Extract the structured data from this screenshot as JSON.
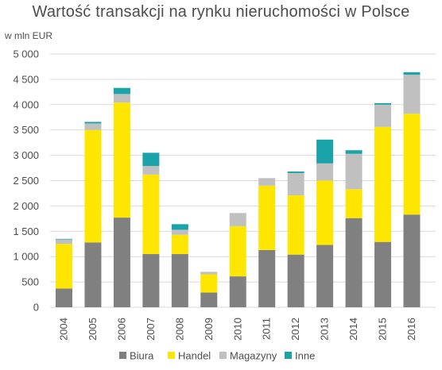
{
  "chart_data": {
    "type": "bar",
    "stacked": true,
    "title": "Wartość transakcji na rynku nieruchomości w Polsce",
    "ylabel": "w mln EUR",
    "xlabel": "",
    "ylim": [
      0,
      5000
    ],
    "yticks": [
      0,
      500,
      1000,
      1500,
      2000,
      2500,
      3000,
      3500,
      4000,
      4500,
      5000
    ],
    "ytick_labels": [
      "0",
      "500",
      "1 000",
      "1 500",
      "2 000",
      "2 500",
      "3 000",
      "3 500",
      "4 000",
      "4 500",
      "5 000"
    ],
    "grid": true,
    "legend_position": "bottom",
    "categories": [
      "2004",
      "2005",
      "2006",
      "2007",
      "2008",
      "2009",
      "2010",
      "2011",
      "2012",
      "2013",
      "2014",
      "2015",
      "2016"
    ],
    "series": [
      {
        "name": "Biura",
        "color": "#808080",
        "values": [
          370,
          1280,
          1770,
          1050,
          1050,
          290,
          610,
          1130,
          1040,
          1230,
          1760,
          1290,
          1830
        ]
      },
      {
        "name": "Handel",
        "color": "#ffe600",
        "values": [
          880,
          2220,
          2270,
          1570,
          380,
          360,
          990,
          1270,
          1170,
          1270,
          570,
          2270,
          1990
        ]
      },
      {
        "name": "Magazyny",
        "color": "#c0c0c0",
        "values": [
          90,
          130,
          170,
          170,
          100,
          50,
          260,
          150,
          440,
          340,
          700,
          440,
          770
        ]
      },
      {
        "name": "Inne",
        "color": "#1aa3a8",
        "values": [
          10,
          30,
          120,
          260,
          110,
          0,
          0,
          0,
          30,
          470,
          70,
          30,
          50
        ]
      }
    ]
  }
}
